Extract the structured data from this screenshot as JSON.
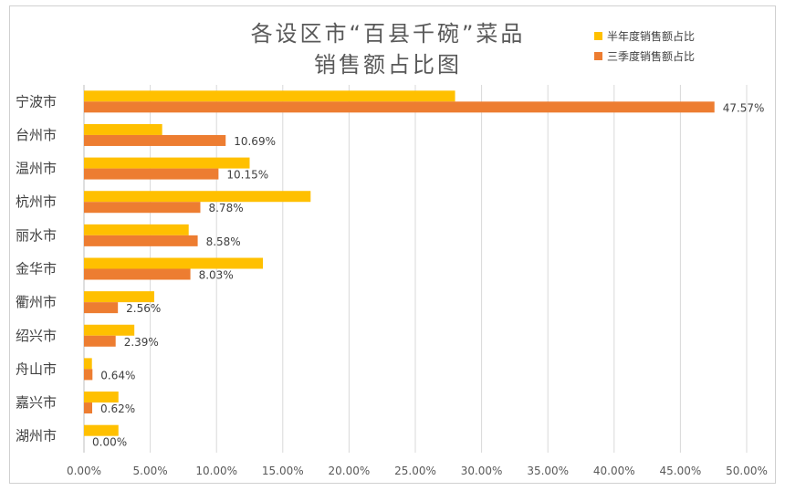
{
  "chart_data": {
    "type": "bar",
    "orientation": "horizontal",
    "title": "各设区市“百县千碗”菜品销售额占比图",
    "title_lines": [
      "各设区市“百县千碗”菜品",
      "销售额占比图"
    ],
    "categories": [
      "宁波市",
      "台州市",
      "温州市",
      "杭州市",
      "丽水市",
      "金华市",
      "衢州市",
      "绍兴市",
      "舟山市",
      "嘉兴市",
      "湖州市"
    ],
    "series": [
      {
        "name": "半年度销售额占比",
        "color": "#FFC000",
        "values": [
          28.0,
          5.9,
          12.5,
          17.1,
          7.9,
          13.5,
          5.3,
          3.8,
          0.6,
          2.6,
          2.6
        ]
      },
      {
        "name": "三季度销售额占比",
        "color": "#ED7D31",
        "values": [
          47.57,
          10.69,
          10.15,
          8.78,
          8.58,
          8.03,
          2.56,
          2.39,
          0.64,
          0.62,
          0.0
        ],
        "data_labels": [
          "47.57%",
          "10.69%",
          "10.15%",
          "8.78%",
          "8.58%",
          "8.03%",
          "2.56%",
          "2.39%",
          "0.64%",
          "0.62%",
          "0.00%"
        ]
      }
    ],
    "xlim": [
      0,
      50
    ],
    "x_ticks": [
      0,
      5,
      10,
      15,
      20,
      25,
      30,
      35,
      40,
      45,
      50
    ],
    "x_tick_labels": [
      "0.00%",
      "5.00%",
      "10.00%",
      "15.00%",
      "20.00%",
      "25.00%",
      "30.00%",
      "35.00%",
      "40.00%",
      "45.00%",
      "50.00%"
    ],
    "xlabel": "",
    "ylabel": "",
    "grid": "vertical",
    "legend_position": "top-right"
  }
}
